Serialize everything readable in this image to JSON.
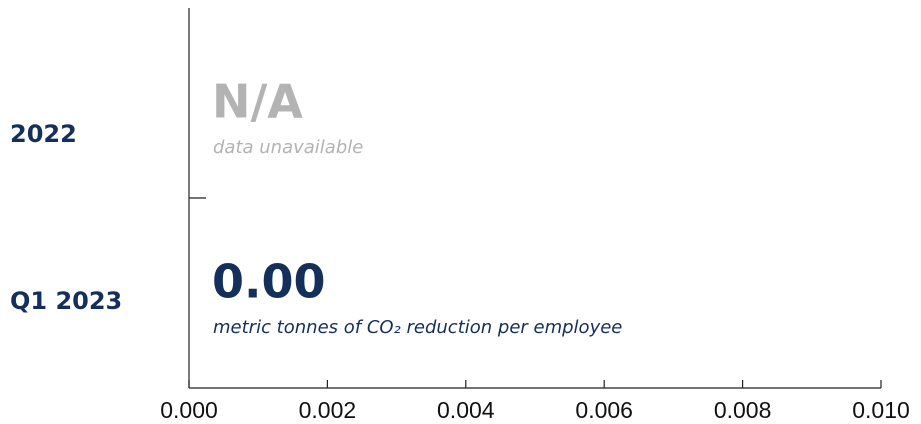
{
  "chart_data": {
    "type": "bar",
    "orientation": "horizontal",
    "categories": [
      "2022",
      "Q1 2023"
    ],
    "values": [
      null,
      0
    ],
    "value_labels": [
      "N/A",
      "0.00"
    ],
    "value_notes": [
      "data unavailable",
      "metric tonnes of CO₂ reduction per employee"
    ],
    "color": "#14305a",
    "missing_color": "#b3b3b3",
    "xlim": [
      0,
      0.01
    ],
    "xticks": [
      {
        "value": 0,
        "label": "0.000"
      },
      {
        "value": 0.002,
        "label": "0.002"
      },
      {
        "value": 0.004,
        "label": "0.004"
      },
      {
        "value": 0.006,
        "label": "0.006"
      },
      {
        "value": 0.008,
        "label": "0.008"
      },
      {
        "value": 0.01,
        "label": "0.010"
      }
    ],
    "grid": false
  }
}
